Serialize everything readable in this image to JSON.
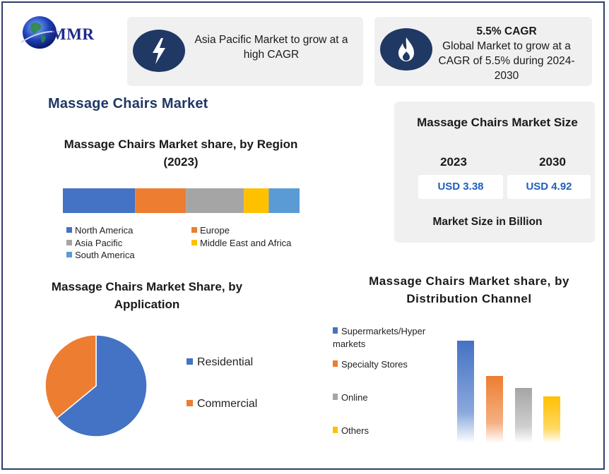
{
  "brand": {
    "name": "MMR"
  },
  "cards": {
    "asia": {
      "text": "Asia Pacific Market to grow at a high CAGR",
      "icon": "lightning-bolt-icon"
    },
    "cagr": {
      "title": "5.5% CAGR",
      "text": "Global Market to grow at a CAGR of 5.5% during 2024-2030",
      "icon": "flame-icon"
    }
  },
  "page_title": "Massage Chairs Market",
  "market_size": {
    "title": "Massage Chairs Market Size",
    "years": [
      "2023",
      "2030"
    ],
    "values": [
      "USD 3.38",
      "USD 4.92"
    ],
    "note": "Market Size in Billion"
  },
  "colors": {
    "navy": "#1f3864",
    "north_america": "#4472c4",
    "europe": "#ed7d31",
    "asia_pacific": "#a5a5a5",
    "mea": "#ffc000",
    "south_america": "#5b9bd5"
  },
  "chart_data": [
    {
      "type": "bar",
      "orientation": "horizontal-stacked",
      "title": "Massage Chairs Market share, by Region (2023)",
      "series": [
        {
          "name": "North America",
          "values": [
            30.5
          ]
        },
        {
          "name": "Europe",
          "values": [
            21.5
          ]
        },
        {
          "name": "Asia Pacific",
          "values": [
            24.5
          ]
        },
        {
          "name": "Middle East and Africa",
          "values": [
            10.5
          ]
        },
        {
          "name": "South America",
          "values": [
            13
          ]
        }
      ],
      "legend": "bottom"
    },
    {
      "type": "pie",
      "title": "Massage Chairs Market Share, by Application",
      "labels": [
        "Residential",
        "Commercial"
      ],
      "values": [
        64,
        36
      ],
      "legend": "right"
    },
    {
      "type": "bar",
      "title": "Massage Chairs Market share, by Distribution Channel",
      "categories": [
        "Supermarkets/Hyper markets",
        "Specialty Stores",
        "Online",
        "Others"
      ],
      "values": [
        145,
        95,
        78,
        66
      ],
      "legend": "left"
    }
  ]
}
